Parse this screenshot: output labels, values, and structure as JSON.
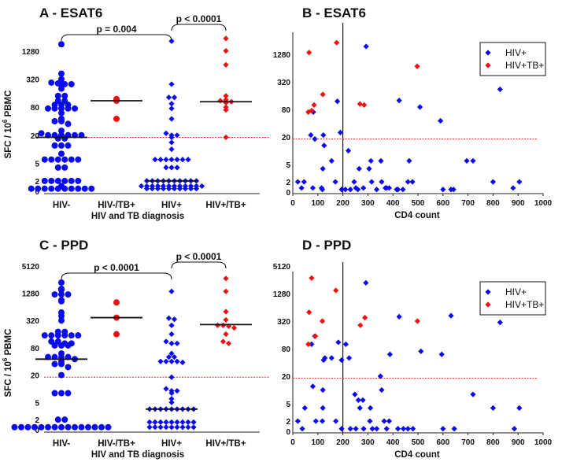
{
  "chart_data": [
    {
      "type": "scatter",
      "subtype": "dot-plot",
      "title": "A - ESAT6",
      "ylabel": "SFC / 10",
      "ylabel_sup": "6",
      "ylabel_suffix": " PBMC",
      "xlabel": "HIV and TB diagnosis",
      "categories": [
        "HIV-",
        "HIV-/TB+",
        "HIV+",
        "HIV+/TB+"
      ],
      "yticks": [
        "0",
        "2",
        "5",
        "20",
        "80",
        "320",
        "1280"
      ],
      "threshold": 18,
      "brackets": [
        {
          "from": 0,
          "to": 2,
          "label": "p = 0.004"
        },
        {
          "from": 2,
          "to": 3,
          "label": "p < 0.0001"
        }
      ],
      "series": [
        {
          "category": "HIV-",
          "color": "#0a0aee",
          "marker": "circle",
          "median": 18,
          "values": [
            1800,
            420,
            270,
            260,
            250,
            240,
            250,
            320,
            200,
            140,
            140,
            110,
            110,
            90,
            90,
            90,
            75,
            75,
            75,
            75,
            75,
            60,
            45,
            40,
            40,
            35,
            25,
            22,
            20,
            20,
            20,
            20,
            20,
            20,
            17,
            17,
            12,
            12,
            12,
            8,
            6,
            6,
            6,
            6,
            6,
            6,
            4,
            4,
            2,
            2,
            2,
            2,
            2,
            2,
            1,
            0.5,
            0.5,
            0.5,
            0.5,
            0.5,
            0.5,
            0.5,
            0.5,
            0.5,
            0.5
          ]
        },
        {
          "category": "HIV-/TB+",
          "color": "#ee1111",
          "marker": "circle",
          "median": 110,
          "values": [
            120,
            110,
            45
          ]
        },
        {
          "category": "HIV+",
          "color": "#0a0aee",
          "marker": "diamond",
          "median": 2,
          "values": [
            2100,
            250,
            130,
            130,
            95,
            75,
            45,
            22,
            20,
            20,
            18,
            14,
            10,
            6,
            6,
            6,
            6,
            6,
            6,
            6,
            4,
            4,
            4,
            2,
            2,
            2,
            2,
            2,
            2,
            2,
            2,
            2,
            2,
            1,
            1,
            1,
            1,
            1,
            1,
            1,
            1,
            1,
            1,
            1,
            1,
            0.5,
            0.5,
            0.5,
            0.5,
            0.5,
            0.5,
            0.5,
            0.5,
            0.5,
            0.5
          ]
        },
        {
          "category": "HIV+/TB+",
          "color": "#ee1111",
          "marker": "diamond",
          "median": 105,
          "values": [
            2400,
            1300,
            650,
            140,
            115,
            110,
            100,
            105,
            80,
            70,
            18
          ]
        }
      ]
    },
    {
      "type": "scatter",
      "title": "B - ESAT6",
      "xlabel": "CD4 count",
      "xlim": [
        0,
        1000
      ],
      "xticks": [
        "0",
        "100",
        "200",
        "300",
        "400",
        "500",
        "600",
        "700",
        "800",
        "900",
        "1000"
      ],
      "yticks": [
        "0",
        "2",
        "5",
        "20",
        "80",
        "320",
        "1280"
      ],
      "cutoff_x": 200,
      "threshold": 18,
      "legend": "top-right",
      "series": [
        {
          "name": "HIV+",
          "color": "#0a0aee",
          "points": [
            [
              20,
              2
            ],
            [
              35,
              0.8
            ],
            [
              45,
              2
            ],
            [
              80,
              0.8
            ],
            [
              82,
              70
            ],
            [
              72,
              22
            ],
            [
              88,
              18
            ],
            [
              120,
              4
            ],
            [
              115,
              0.8
            ],
            [
              118,
              0.5
            ],
            [
              122,
              22
            ],
            [
              125,
              13
            ],
            [
              155,
              6
            ],
            [
              170,
              2
            ],
            [
              178,
              120
            ],
            [
              190,
              25
            ],
            [
              195,
              0.5
            ],
            [
              210,
              0.5
            ],
            [
              222,
              10
            ],
            [
              230,
              0.5
            ],
            [
              245,
              2
            ],
            [
              252,
              0.8
            ],
            [
              260,
              0.5
            ],
            [
              265,
              4
            ],
            [
              282,
              0.8
            ],
            [
              293,
              1900
            ],
            [
              305,
              4
            ],
            [
              312,
              6
            ],
            [
              315,
              2
            ],
            [
              335,
              0.5
            ],
            [
              352,
              6
            ],
            [
              355,
              2
            ],
            [
              370,
              0.8
            ],
            [
              375,
              0.8
            ],
            [
              385,
              0.8
            ],
            [
              415,
              0.5
            ],
            [
              420,
              0.5
            ],
            [
              425,
              125
            ],
            [
              440,
              0.5
            ],
            [
              460,
              2
            ],
            [
              465,
              6
            ],
            [
              478,
              2
            ],
            [
              508,
              90
            ],
            [
              590,
              45
            ],
            [
              600,
              0.5
            ],
            [
              632,
              0.5
            ],
            [
              642,
              0.5
            ],
            [
              695,
              6
            ],
            [
              720,
              6
            ],
            [
              800,
              2
            ],
            [
              828,
              220
            ],
            [
              880,
              0.8
            ],
            [
              905,
              2
            ]
          ]
        },
        {
          "name": "HIV+TB+",
          "color": "#ee1111",
          "points": [
            [
              65,
              1400
            ],
            [
              175,
              2300
            ],
            [
              497,
              700
            ],
            [
              120,
              170
            ],
            [
              85,
              100
            ],
            [
              62,
              70
            ],
            [
              75,
              75
            ],
            [
              268,
              105
            ],
            [
              285,
              100
            ]
          ]
        }
      ]
    },
    {
      "type": "scatter",
      "subtype": "dot-plot",
      "title": "C - PPD",
      "ylabel": "SFC / 10",
      "ylabel_sup": "6",
      "ylabel_suffix": " PBMC",
      "xlabel": "HIV and TB diagnosis",
      "categories": [
        "HIV-",
        "HIV-/TB+",
        "HIV+",
        "HIV+/TB+"
      ],
      "yticks": [
        "0",
        "2",
        "5",
        "20",
        "80",
        "320",
        "1280",
        "5120"
      ],
      "threshold": 18,
      "brackets": [
        {
          "from": 0,
          "to": 2,
          "label": "p < 0.0001"
        },
        {
          "from": 2,
          "to": 3,
          "label": "p < 0.0001"
        }
      ],
      "series": [
        {
          "category": "HIV-",
          "color": "#0a0aee",
          "marker": "circle",
          "median": 45,
          "values": [
            2200,
            1600,
            1500,
            1200,
            1200,
            1200,
            900,
            850,
            480,
            400,
            320,
            180,
            180,
            150,
            150,
            150,
            150,
            150,
            150,
            110,
            110,
            100,
            100,
            90,
            90,
            90,
            60,
            50,
            50,
            50,
            50,
            45,
            40,
            35,
            35,
            30,
            20,
            8,
            8,
            8,
            2,
            2,
            0.5,
            0.5,
            0.5,
            0.5,
            0.5,
            0.5,
            0.5,
            0.5,
            0.5,
            0.5,
            0.5,
            0.5,
            0.5,
            0.5,
            0.5
          ]
        },
        {
          "category": "HIV-/TB+",
          "color": "#ee1111",
          "marker": "circle",
          "median": 370,
          "values": [
            800,
            370,
            160
          ]
        },
        {
          "category": "HIV+",
          "color": "#0a0aee",
          "marker": "diamond",
          "median": 3.5,
          "values": [
            1400,
            360,
            340,
            250,
            160,
            110,
            100,
            100,
            60,
            50,
            50,
            40,
            40,
            40,
            40,
            38,
            18,
            10,
            9,
            9,
            8,
            6,
            5,
            3.5,
            3.5,
            3.5,
            3.5,
            3.5,
            3.5,
            3.5,
            3.5,
            3.5,
            1.5,
            1.5,
            1.5,
            1.5,
            1.5,
            1.5,
            1.5,
            1.5,
            1.5,
            0.5,
            0.5,
            0.5,
            0.5,
            0.5,
            0.5,
            0.5,
            0.5,
            0.5
          ]
        },
        {
          "category": "HIV+/TB+",
          "color": "#ee1111",
          "marker": "diamond",
          "median": 260,
          "values": [
            2700,
            1400,
            500,
            330,
            250,
            250,
            240,
            220,
            160,
            110,
            100
          ]
        }
      ]
    },
    {
      "type": "scatter",
      "title": "D - PPD",
      "xlabel": "CD4 count",
      "xlim": [
        0,
        1000
      ],
      "xticks": [
        "0",
        "100",
        "200",
        "300",
        "400",
        "500",
        "600",
        "700",
        "800",
        "900",
        "1000"
      ],
      "yticks": [
        "0",
        "2",
        "5",
        "20",
        "80",
        "320",
        "1280",
        "5120"
      ],
      "cutoff_x": 200,
      "threshold": 18,
      "legend": "top-right",
      "series": [
        {
          "name": "HIV+",
          "color": "#0a0aee",
          "points": [
            [
              20,
              2
            ],
            [
              38,
              0.5
            ],
            [
              48,
              4
            ],
            [
              75,
              100
            ],
            [
              80,
              12
            ],
            [
              88,
              150
            ],
            [
              92,
              2
            ],
            [
              118,
              2
            ],
            [
              120,
              4
            ],
            [
              120,
              10
            ],
            [
              123,
              45
            ],
            [
              128,
              50
            ],
            [
              155,
              50
            ],
            [
              172,
              2
            ],
            [
              182,
              110
            ],
            [
              195,
              0.5
            ],
            [
              195,
              45
            ],
            [
              212,
              100
            ],
            [
              225,
              50
            ],
            [
              230,
              0.5
            ],
            [
              248,
              8
            ],
            [
              252,
              0.5
            ],
            [
              262,
              6
            ],
            [
              268,
              4
            ],
            [
              280,
              6
            ],
            [
              283,
              0.5
            ],
            [
              292,
              2200
            ],
            [
              308,
              2
            ],
            [
              310,
              4
            ],
            [
              318,
              0.5
            ],
            [
              335,
              0.5
            ],
            [
              350,
              20
            ],
            [
              355,
              10
            ],
            [
              365,
              2
            ],
            [
              375,
              0.5
            ],
            [
              385,
              2
            ],
            [
              388,
              60
            ],
            [
              420,
              0.5
            ],
            [
              425,
              400
            ],
            [
              442,
              0.5
            ],
            [
              460,
              0.5
            ],
            [
              480,
              0.5
            ],
            [
              512,
              70
            ],
            [
              595,
              60
            ],
            [
              600,
              0.5
            ],
            [
              632,
              420
            ],
            [
              645,
              0.5
            ],
            [
              720,
              8
            ],
            [
              800,
              4
            ],
            [
              828,
              300
            ],
            [
              885,
              0.5
            ],
            [
              905,
              4
            ]
          ]
        },
        {
          "name": "HIV+TB+",
          "color": "#ee1111",
          "points": [
            [
              75,
              2800
            ],
            [
              172,
              1500
            ],
            [
              65,
              500
            ],
            [
              118,
              320
            ],
            [
              90,
              150
            ],
            [
              62,
              100
            ],
            [
              270,
              260
            ],
            [
              288,
              380
            ],
            [
              498,
              320
            ]
          ]
        }
      ]
    }
  ]
}
